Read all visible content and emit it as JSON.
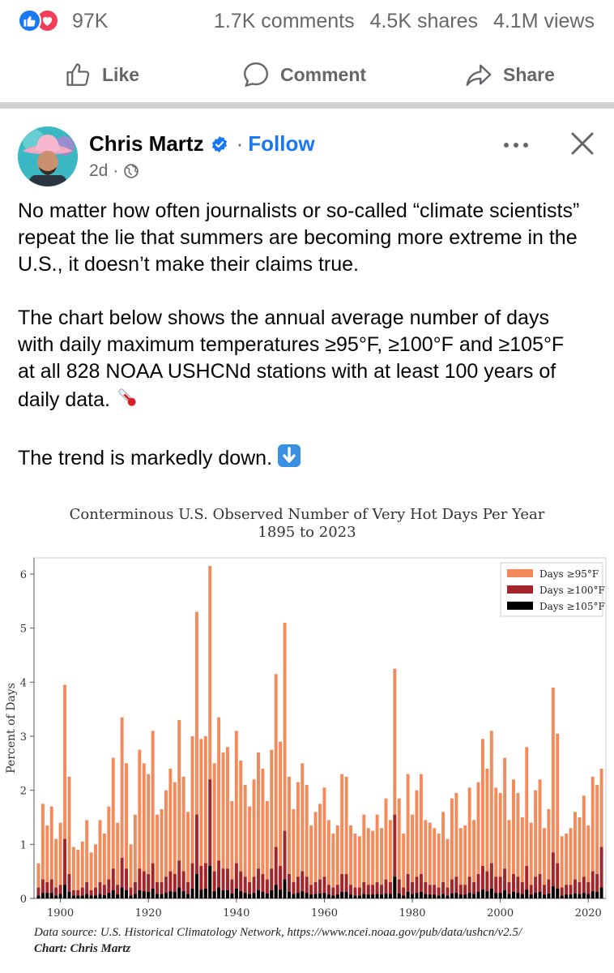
{
  "stats": {
    "reaction_count": "97K",
    "comments": "1.7K comments",
    "shares": "4.5K shares",
    "views": "4.1M views",
    "reaction_icons": [
      "like-reaction-icon",
      "love-reaction-icon"
    ]
  },
  "actions": {
    "like": "Like",
    "comment": "Comment",
    "share": "Share"
  },
  "post": {
    "author": "Chris Martz",
    "follow": "Follow",
    "separator": "·",
    "time": "2d",
    "paragraphs": [
      "No matter how often journalists or so-called “climate scientists” repeat the lie that summers are becoming more extreme in the U.S., it doesn’t make their claims true.",
      "The chart below shows the annual average number of days with daily maximum temperatures ≥95°F, ≥100°F and ≥105°F at all 828 NOAA USHCNd stations with at least 100 years of daily data.",
      "The trend is markedly down."
    ],
    "emojis": [
      "thermometer-emoji",
      "down-arrow-emoji"
    ]
  },
  "chart": {
    "source_line": "Data source: U.S. Historical Climatology Network, https://www.ncei.noaa.gov/pub/data/ushcn/v2.5/",
    "credit_line": "Chart: Chris Martz"
  },
  "chart_data": {
    "type": "bar",
    "title": "Conterminous U.S. Observed Number of Very Hot Days Per Year",
    "subtitle": "1895 to 2023",
    "ylabel": "Percent of Days",
    "xlabel": "",
    "x_start": 1895,
    "x_end": 2023,
    "ylim": [
      0,
      6.3
    ],
    "xlim": [
      1894,
      2024
    ],
    "xticks": [
      1900,
      1920,
      1940,
      1960,
      1980,
      2000,
      2020
    ],
    "yticks": [
      0,
      1,
      2,
      3,
      4,
      5,
      6
    ],
    "legend_position": "top-right",
    "grid": false,
    "series": [
      {
        "name": "Days ≥95°F",
        "color": "#f4895a",
        "values": [
          0.65,
          1.75,
          1.35,
          1.7,
          1.1,
          1.4,
          3.95,
          2.25,
          0.95,
          0.9,
          1.05,
          1.45,
          0.85,
          1.0,
          1.45,
          1.2,
          1.7,
          2.6,
          1.4,
          3.35,
          2.5,
          1.0,
          1.55,
          2.75,
          2.5,
          2.3,
          3.1,
          1.55,
          1.65,
          2.0,
          2.4,
          2.15,
          3.3,
          2.25,
          1.6,
          3.0,
          5.3,
          2.95,
          3.0,
          6.15,
          2.5,
          3.35,
          2.7,
          2.8,
          1.8,
          3.1,
          2.55,
          2.1,
          1.7,
          2.2,
          2.7,
          2.4,
          1.8,
          2.75,
          4.15,
          2.9,
          5.1,
          2.25,
          1.65,
          2.15,
          2.5,
          2.1,
          1.35,
          1.6,
          1.75,
          2.05,
          1.45,
          1.2,
          1.35,
          2.3,
          2.25,
          1.35,
          1.2,
          1.15,
          1.55,
          1.3,
          1.25,
          1.55,
          1.3,
          1.85,
          1.45,
          4.25,
          1.85,
          1.2,
          2.3,
          1.55,
          2.0,
          2.3,
          1.45,
          1.4,
          1.3,
          1.2,
          1.6,
          1.1,
          1.85,
          1.95,
          1.3,
          1.35,
          2.05,
          1.45,
          2.15,
          2.95,
          2.4,
          3.1,
          2.05,
          1.95,
          2.6,
          1.45,
          2.2,
          1.95,
          1.5,
          2.8,
          1.4,
          2.0,
          2.2,
          1.3,
          1.65,
          3.9,
          3.05,
          1.15,
          1.2,
          1.3,
          1.6,
          1.5,
          1.9,
          1.35,
          2.25,
          2.1,
          2.4
        ],
        "note": "values are total height of stacked bar in percent of days"
      },
      {
        "name": "Days ≥100°F",
        "color": "#a3242b",
        "values": [
          0.2,
          0.35,
          0.3,
          0.35,
          0.2,
          0.25,
          1.1,
          0.45,
          0.15,
          0.15,
          0.2,
          0.3,
          0.15,
          0.2,
          0.3,
          0.25,
          0.35,
          0.55,
          0.25,
          0.75,
          0.55,
          0.2,
          0.3,
          0.55,
          0.5,
          0.45,
          0.65,
          0.3,
          0.3,
          0.4,
          0.5,
          0.45,
          0.7,
          0.5,
          0.3,
          0.65,
          1.55,
          0.6,
          0.65,
          2.2,
          0.5,
          0.7,
          0.55,
          0.55,
          0.35,
          0.65,
          0.5,
          0.4,
          0.3,
          0.4,
          0.55,
          0.45,
          0.35,
          0.55,
          0.95,
          0.6,
          1.25,
          0.45,
          0.3,
          0.4,
          0.5,
          0.4,
          0.25,
          0.3,
          0.35,
          0.4,
          0.25,
          0.2,
          0.25,
          0.45,
          0.45,
          0.25,
          0.2,
          0.2,
          0.3,
          0.25,
          0.25,
          0.3,
          0.25,
          0.35,
          0.3,
          1.55,
          0.35,
          0.2,
          0.45,
          0.3,
          0.4,
          0.45,
          0.3,
          0.25,
          0.25,
          0.2,
          0.3,
          0.2,
          0.35,
          0.4,
          0.25,
          0.25,
          0.4,
          0.3,
          0.45,
          0.6,
          0.5,
          0.65,
          0.4,
          0.4,
          0.55,
          0.3,
          0.45,
          0.4,
          0.3,
          0.6,
          0.25,
          0.4,
          0.45,
          0.25,
          0.35,
          0.85,
          0.65,
          0.2,
          0.25,
          0.25,
          0.35,
          0.3,
          0.4,
          0.3,
          0.5,
          0.45,
          0.95
        ]
      },
      {
        "name": "Days ≥105°F",
        "color": "#000000",
        "values": [
          0.05,
          0.1,
          0.1,
          0.1,
          0.05,
          0.08,
          0.25,
          0.12,
          0.05,
          0.05,
          0.05,
          0.08,
          0.05,
          0.05,
          0.08,
          0.06,
          0.1,
          0.15,
          0.07,
          0.2,
          0.15,
          0.05,
          0.08,
          0.15,
          0.13,
          0.12,
          0.18,
          0.08,
          0.08,
          0.1,
          0.13,
          0.12,
          0.2,
          0.13,
          0.08,
          0.18,
          0.45,
          0.16,
          0.18,
          0.6,
          0.13,
          0.2,
          0.15,
          0.15,
          0.09,
          0.18,
          0.13,
          0.1,
          0.08,
          0.1,
          0.15,
          0.12,
          0.09,
          0.15,
          0.25,
          0.16,
          0.35,
          0.12,
          0.08,
          0.1,
          0.13,
          0.1,
          0.07,
          0.08,
          0.09,
          0.1,
          0.07,
          0.05,
          0.07,
          0.12,
          0.12,
          0.07,
          0.05,
          0.05,
          0.08,
          0.07,
          0.07,
          0.08,
          0.07,
          0.09,
          0.08,
          0.4,
          0.09,
          0.05,
          0.12,
          0.08,
          0.1,
          0.12,
          0.08,
          0.07,
          0.07,
          0.05,
          0.08,
          0.05,
          0.09,
          0.1,
          0.07,
          0.07,
          0.1,
          0.08,
          0.12,
          0.16,
          0.13,
          0.18,
          0.1,
          0.1,
          0.15,
          0.08,
          0.12,
          0.1,
          0.08,
          0.16,
          0.07,
          0.1,
          0.12,
          0.07,
          0.09,
          0.22,
          0.18,
          0.05,
          0.07,
          0.07,
          0.09,
          0.08,
          0.1,
          0.08,
          0.13,
          0.12,
          0.2
        ]
      }
    ]
  },
  "colors": {
    "accent": "#1877f2",
    "love": "#f33e58",
    "muted_text": "#65676b"
  }
}
